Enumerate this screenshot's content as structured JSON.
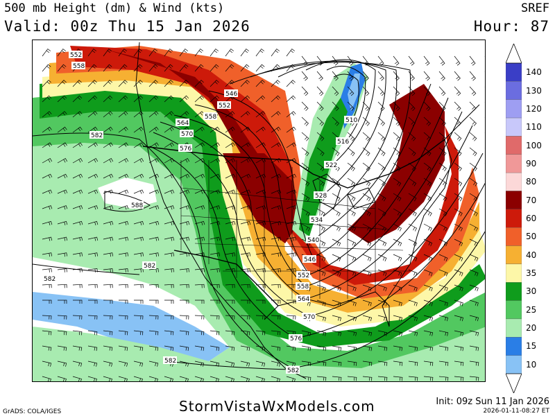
{
  "header": {
    "title": "500 mb Height (dm) & Wind (kts)",
    "valid": "Valid: 00z Thu 15 Jan 2026",
    "model": "SREF",
    "hour": "Hour: 87"
  },
  "colorbar": {
    "labels": [
      "140",
      "130",
      "120",
      "110",
      "100",
      "90",
      "80",
      "70",
      "60",
      "50",
      "40",
      "35",
      "30",
      "25",
      "20",
      "15",
      "10"
    ],
    "colors": [
      "#3a3ec6",
      "#6b6de0",
      "#9e9ef2",
      "#c8c8fa",
      "#e06a6a",
      "#f09898",
      "#fcd8d8",
      "#8b0000",
      "#cd1a0a",
      "#f0602a",
      "#f6b032",
      "#fdf7a8",
      "#0f9c1c",
      "#52c860",
      "#a8ebb0",
      "#2a7ee6",
      "#88c2f5"
    ]
  },
  "map": {
    "contour_labels": [
      "552",
      "558",
      "546",
      "552",
      "558",
      "564",
      "570",
      "576",
      "582",
      "588",
      "582",
      "510",
      "516",
      "522",
      "528",
      "534",
      "540",
      "546",
      "552",
      "558",
      "564",
      "570",
      "576",
      "582",
      "582",
      "582"
    ]
  },
  "footer": {
    "site": "StormVistaWxModels.com",
    "grads": "GrADS: COLA/IGES",
    "init": "Init: 09z Sun 11 Jan 2026",
    "stamp": "2026-01-11-08:27 ET"
  }
}
